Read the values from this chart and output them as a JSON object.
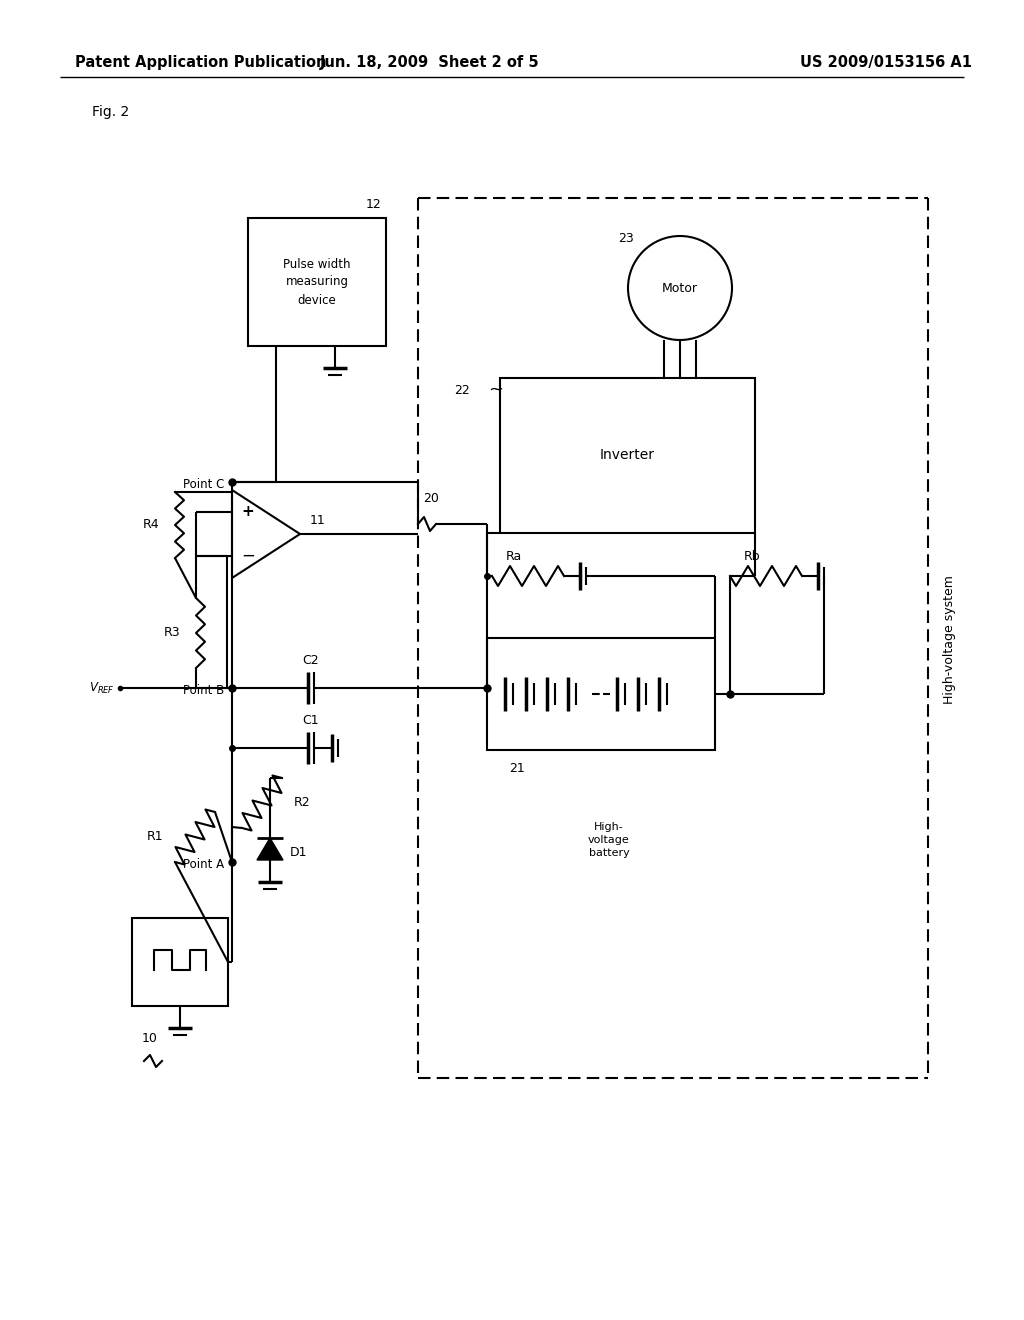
{
  "bg_color": "#ffffff",
  "line_color": "#000000",
  "header_text1": "Patent Application Publication",
  "header_text2": "Jun. 18, 2009  Sheet 2 of 5",
  "header_text3": "US 2009/0153156 A1",
  "fig_label": "Fig. 2",
  "header_fontsize": 10.5
}
